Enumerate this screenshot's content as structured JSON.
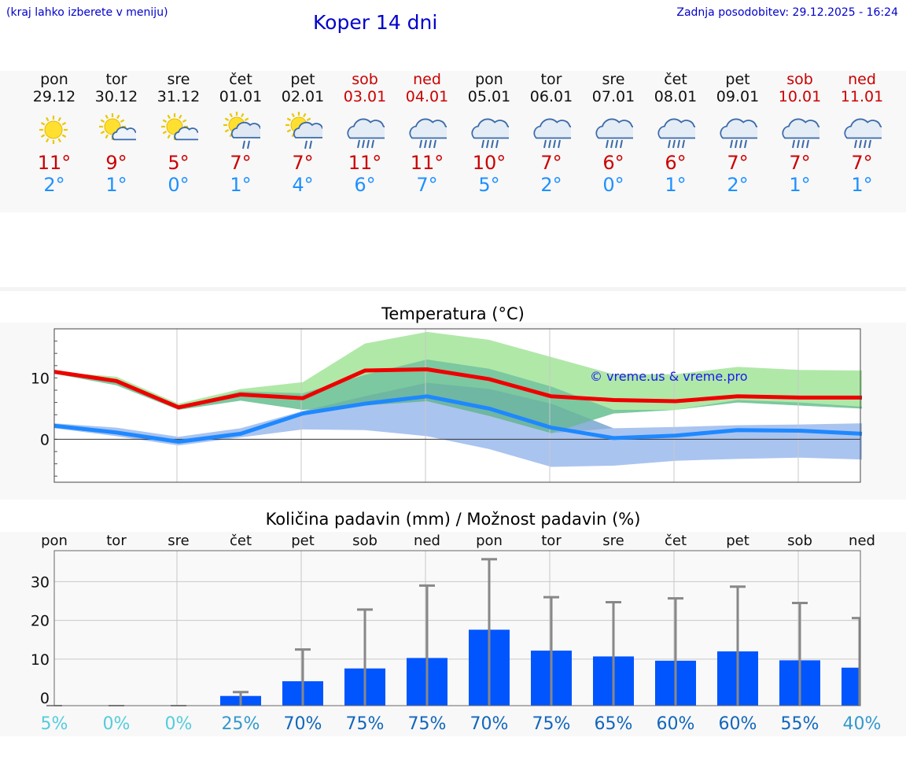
{
  "header": {
    "left_note": "(kraj lahko izberete v meniju)",
    "title": "Koper 14 dni",
    "updated": "Zadnja posodobitev: 29.12.2025 - 16:24"
  },
  "days": [
    {
      "name": "pon",
      "date": "29.12",
      "max": "11°",
      "min": "2°",
      "weekend": false,
      "icon": "sun-icon"
    },
    {
      "name": "tor",
      "date": "30.12",
      "max": "9°",
      "min": "1°",
      "weekend": false,
      "icon": "sun-cloud-icon"
    },
    {
      "name": "sre",
      "date": "31.12",
      "max": "5°",
      "min": "0°",
      "weekend": false,
      "icon": "sun-cloud-icon"
    },
    {
      "name": "čet",
      "date": "01.01",
      "max": "7°",
      "min": "1°",
      "weekend": false,
      "icon": "sun-cloud-rain-icon"
    },
    {
      "name": "pet",
      "date": "02.01",
      "max": "7°",
      "min": "4°",
      "weekend": false,
      "icon": "sun-cloud-rain-icon"
    },
    {
      "name": "sob",
      "date": "03.01",
      "max": "11°",
      "min": "6°",
      "weekend": true,
      "icon": "cloud-rain-icon"
    },
    {
      "name": "ned",
      "date": "04.01",
      "max": "11°",
      "min": "7°",
      "weekend": true,
      "icon": "cloud-rain-icon"
    },
    {
      "name": "pon",
      "date": "05.01",
      "max": "10°",
      "min": "5°",
      "weekend": false,
      "icon": "cloud-rain-icon"
    },
    {
      "name": "tor",
      "date": "06.01",
      "max": "7°",
      "min": "2°",
      "weekend": false,
      "icon": "cloud-rain-icon"
    },
    {
      "name": "sre",
      "date": "07.01",
      "max": "6°",
      "min": "0°",
      "weekend": false,
      "icon": "cloud-rain-icon"
    },
    {
      "name": "čet",
      "date": "08.01",
      "max": "6°",
      "min": "1°",
      "weekend": false,
      "icon": "cloud-rain-icon"
    },
    {
      "name": "pet",
      "date": "09.01",
      "max": "7°",
      "min": "2°",
      "weekend": false,
      "icon": "cloud-rain-icon"
    },
    {
      "name": "sob",
      "date": "10.01",
      "max": "7°",
      "min": "1°",
      "weekend": true,
      "icon": "cloud-rain-icon"
    },
    {
      "name": "ned",
      "date": "11.01",
      "max": "7°",
      "min": "1°",
      "weekend": true,
      "icon": "cloud-rain-icon"
    }
  ],
  "colors": {
    "max_line": "#ee0000",
    "min_line": "#1e88ff",
    "max_band_outer": "#b0e8a8",
    "max_band_inner": "#7cc8a0",
    "min_band": "#aac4f0",
    "bar": "#0055ff",
    "whisker": "#888888",
    "prob_low": "#55ccdd",
    "prob_high": "#1166bb"
  },
  "chart_data": [
    {
      "type": "line",
      "title": "Temperatura (°C)",
      "watermark": "© vreme.us & vreme.pro",
      "categories": [
        "29.12",
        "30.12",
        "31.12",
        "01.01",
        "02.01",
        "03.01",
        "04.01",
        "05.01",
        "06.01",
        "07.01",
        "08.01",
        "09.01",
        "10.01",
        "11.01"
      ],
      "ylim": [
        -7,
        18
      ],
      "yticks": [
        0,
        10
      ],
      "series": [
        {
          "name": "max",
          "values": [
            11,
            9.5,
            5.2,
            7.3,
            6.7,
            11.2,
            11.4,
            9.8,
            7,
            6.4,
            6.2,
            7,
            6.8,
            6.8
          ]
        },
        {
          "name": "min",
          "values": [
            2.2,
            1.1,
            -0.4,
            0.9,
            4.2,
            5.8,
            7,
            5,
            1.9,
            0.2,
            0.6,
            1.5,
            1.4,
            0.9
          ]
        }
      ],
      "bands": {
        "max_outer_high": [
          11,
          10.2,
          5.8,
          8.2,
          9.3,
          15.6,
          17.5,
          16.2,
          13.4,
          10.6,
          10.6,
          11.8,
          11.3,
          11.2
        ],
        "max_outer_low": [
          10.7,
          8.8,
          4.8,
          6.3,
          4.8,
          5.5,
          6.2,
          3.8,
          1.0,
          4.2,
          4.8,
          6.0,
          5.5,
          5.0
        ],
        "max_inner_high": [
          11,
          9.7,
          5.4,
          7.8,
          7.5,
          10.5,
          13,
          11.5,
          8.6,
          4.8,
          4.8,
          6.4,
          6.0,
          5.3
        ],
        "min_low": [
          1.8,
          0.5,
          -1.0,
          0.3,
          1.6,
          1.5,
          0.5,
          -1.6,
          -4.5,
          -4.3,
          -3.5,
          -3.2,
          -3.0,
          -3.3
        ],
        "min_high": [
          2.6,
          1.9,
          0.4,
          1.8,
          4.6,
          7.0,
          9.2,
          8.2,
          5.8,
          1.8,
          2.0,
          2.3,
          2.4,
          2.6
        ]
      }
    },
    {
      "type": "bar",
      "title": "Količina padavin (mm) / Možnost padavin (%)",
      "categories": [
        "pon",
        "tor",
        "sre",
        "čet",
        "pet",
        "sob",
        "ned",
        "pon",
        "tor",
        "sre",
        "čet",
        "pet",
        "sob",
        "ned"
      ],
      "ylim": [
        -2,
        38
      ],
      "yticks": [
        0,
        10,
        20,
        30
      ],
      "values": [
        0,
        0,
        0,
        0.5,
        4.3,
        7.6,
        10.3,
        17.6,
        12.2,
        10.7,
        9.6,
        12,
        9.7,
        7.8
      ],
      "whisker_max": [
        0,
        0,
        0,
        1.5,
        12.5,
        22.8,
        29,
        35.8,
        26,
        24.7,
        25.7,
        28.7,
        24.5,
        20.6
      ],
      "probabilities": [
        "5%",
        "0%",
        "0%",
        "25%",
        "70%",
        "75%",
        "75%",
        "70%",
        "75%",
        "65%",
        "60%",
        "60%",
        "55%",
        "40%"
      ],
      "probability_values": [
        5,
        0,
        0,
        25,
        70,
        75,
        75,
        70,
        75,
        65,
        60,
        60,
        55,
        40
      ]
    }
  ]
}
